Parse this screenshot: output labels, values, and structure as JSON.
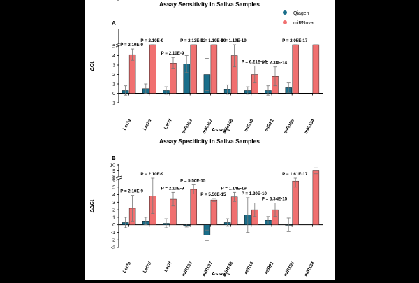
{
  "legend": {
    "items": [
      {
        "label": "Qiagen",
        "color": "#1a6e8a"
      },
      {
        "label": "miRNova",
        "color": "#f07070"
      }
    ]
  },
  "chart_data": [
    {
      "type": "bar",
      "panel_letter": "A",
      "title": "Assay Sensitivity in Saliva Samples",
      "xlabel": "Assays",
      "ylabel": "ΔCt",
      "axis_break": [
        5,
        10
      ],
      "ylim": [
        -1,
        10
      ],
      "yticks": [
        -1,
        0,
        1,
        2,
        3,
        4,
        5,
        10
      ],
      "categories": [
        "Let7a",
        "Let7d",
        "Let7f",
        "miR103",
        "miR107",
        "miR148",
        "miR16",
        "miR21",
        "miR155",
        "miR134"
      ],
      "series": [
        {
          "name": "Qiagen",
          "values": [
            0.3,
            0.5,
            0.3,
            3.1,
            2.0,
            0.4,
            0.3,
            0.3,
            0.6,
            null
          ],
          "errors": [
            0.5,
            0.5,
            0.4,
            0.9,
            1.7,
            0.5,
            0.4,
            0.5,
            0.5,
            null
          ]
        },
        {
          "name": "miRNova",
          "values": [
            4.1,
            8.4,
            3.2,
            6.0,
            8.3,
            4.0,
            2.0,
            1.8,
            6.4,
            5.9
          ],
          "errors": [
            0.6,
            0.8,
            0.6,
            0.6,
            0.7,
            1.2,
            0.9,
            1.0,
            0.6,
            0.4
          ]
        }
      ],
      "annotations": [
        {
          "category": "Let7a",
          "text": "P = 2.10E-9"
        },
        {
          "category": "Let7d",
          "text": "P = 2.10E-9"
        },
        {
          "category": "Let7f",
          "text": "P = 2.10E-9"
        },
        {
          "category": "miR103",
          "text": "P = 2.13E-12"
        },
        {
          "category": "miR107",
          "text": "P = 1.19E-19"
        },
        {
          "category": "miR148",
          "text": "P = 1.19E-19"
        },
        {
          "category": "miR16",
          "text": "P = 6.21E-19"
        },
        {
          "category": "miR21",
          "text": "P = 2.38E-14"
        },
        {
          "category": "miR155",
          "text": "P = 2.05E-17"
        }
      ]
    },
    {
      "type": "bar",
      "panel_letter": "B",
      "title": "Assay Specificity in Saliva Samples",
      "xlabel": "Assays",
      "ylabel": "ΔΔCt",
      "axis_break": [
        6,
        8
      ],
      "ylim": [
        -3,
        10
      ],
      "yticks": [
        -3,
        -2,
        -1,
        0,
        1,
        2,
        3,
        4,
        5,
        6,
        8,
        9,
        10
      ],
      "categories": [
        "Let7a",
        "Let7d",
        "Let7f",
        "miR103",
        "miR107",
        "miR148",
        "miR16",
        "miR21",
        "miR155",
        "miR134"
      ],
      "series": [
        {
          "name": "Qiagen",
          "values": [
            0.3,
            0.5,
            0.2,
            -0.1,
            -1.4,
            0.3,
            1.3,
            0.6,
            0.0,
            null
          ],
          "errors": [
            0.7,
            0.5,
            0.6,
            0.2,
            0.7,
            0.5,
            2.3,
            0.5,
            0.9,
            null
          ]
        },
        {
          "name": "miRNova",
          "values": [
            2.2,
            3.8,
            3.4,
            4.7,
            3.3,
            3.7,
            2.0,
            2.0,
            5.8,
            9.0
          ],
          "errors": [
            1.7,
            2.3,
            0.9,
            0.6,
            0.2,
            0.6,
            0.9,
            0.9,
            0.8,
            0.5
          ]
        }
      ],
      "annotations": [
        {
          "category": "Let7a",
          "text": "P = 2.10E-9"
        },
        {
          "category": "Let7d",
          "text": "P = 2.10E-9"
        },
        {
          "category": "Let7f",
          "text": "P = 2.10E-9"
        },
        {
          "category": "miR103",
          "text": "P = 5.50E-15"
        },
        {
          "category": "miR107",
          "text": "P = 5.50E-15"
        },
        {
          "category": "miR148",
          "text": "P = 1.14E-19"
        },
        {
          "category": "miR16",
          "text": "P = 1.20E-10"
        },
        {
          "category": "miR21",
          "text": "P = 5.34E-15"
        },
        {
          "category": "miR155",
          "text": "P = 1.61E-17"
        }
      ]
    }
  ]
}
